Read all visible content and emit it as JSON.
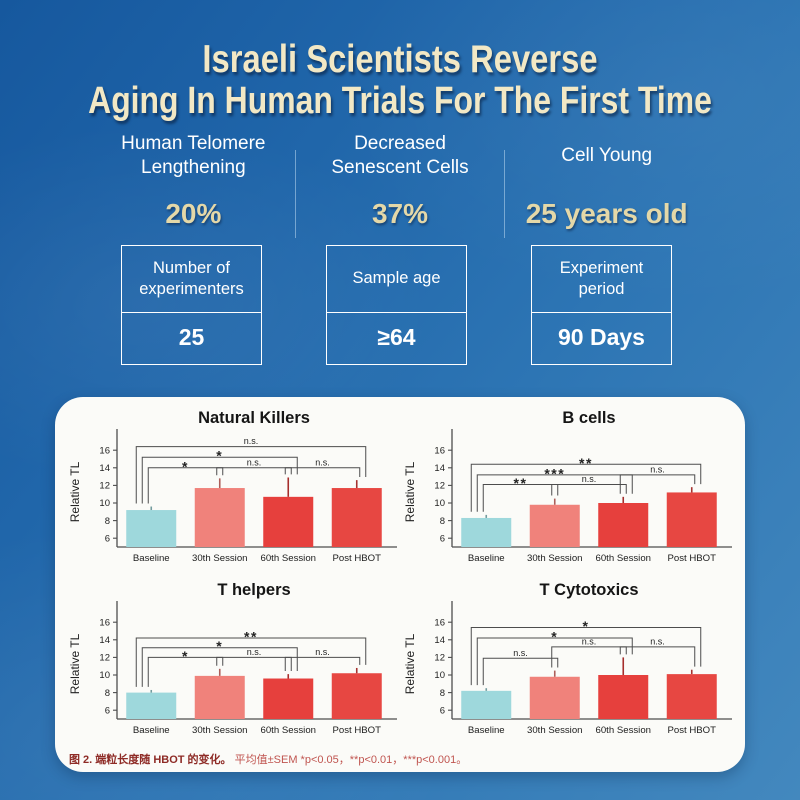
{
  "header": {
    "title_line1": "Israeli Scientists Reverse",
    "title_line2": "Aging In Human Trials For The First Time"
  },
  "stats": [
    {
      "label_lines": [
        "Human Telomere",
        "Lengthening"
      ],
      "value": "20%"
    },
    {
      "label_lines": [
        "Decreased",
        "Senescent Cells"
      ],
      "value": "37%"
    },
    {
      "label_lines": [
        "Cell Young"
      ],
      "value": "25 years old"
    }
  ],
  "info_boxes": [
    {
      "label_lines": [
        "Number of",
        "experimenters"
      ],
      "value": "25"
    },
    {
      "label_lines": [
        "Sample age"
      ],
      "value": "≥64"
    },
    {
      "label_lines": [
        "Experiment",
        "period"
      ],
      "value": "90 Days"
    }
  ],
  "caption": {
    "bold": "图 2. 端粒长度随 HBOT 的变化。",
    "normal": " 平均值±SEM *p<0.05，**p<0.01，***p<0.001。"
  },
  "theme": {
    "bg_top": "#16589E",
    "bg_bottom": "#4388BE",
    "accent_tan": "#E4D8A8",
    "panel_bg": "#FBFBF8",
    "caption_bold_color": "#8E2B26",
    "caption_normal_color": "#C05550",
    "bracket_color": "#4D4D4D"
  },
  "chart_data": [
    {
      "type": "bar",
      "title": "Natural Killers",
      "ylabel": "Relative TL",
      "categories": [
        "Baseline",
        "30th Session",
        "60th Session",
        "Post HBOT"
      ],
      "values": [
        9.2,
        11.7,
        10.7,
        11.7
      ],
      "errors": [
        0.4,
        1.1,
        2.2,
        0.9
      ],
      "bar_colors": [
        "#9ED8DC",
        "#F0827B",
        "#E6403D",
        "#E74742"
      ],
      "yticks": [
        6,
        8,
        10,
        12,
        14,
        16
      ],
      "ylim": [
        5,
        17.5
      ],
      "grid": false,
      "significance": [
        {
          "from": 0,
          "to": 1,
          "label": "*",
          "y": 14.0
        },
        {
          "from": 1,
          "to": 2,
          "label": "n.s.",
          "y": 14.0
        },
        {
          "from": 2,
          "to": 3,
          "label": "n.s.",
          "y": 14.0
        },
        {
          "from": 0,
          "to": 2,
          "label": "*",
          "y": 15.2
        },
        {
          "from": 0,
          "to": 3,
          "label": "n.s.",
          "y": 16.4
        }
      ]
    },
    {
      "type": "bar",
      "title": "B cells",
      "ylabel": "Relative TL",
      "categories": [
        "Baseline",
        "30th Session",
        "60th Session",
        "Post HBOT"
      ],
      "values": [
        8.3,
        9.8,
        10.0,
        11.2
      ],
      "errors": [
        0.35,
        0.7,
        0.7,
        0.6
      ],
      "bar_colors": [
        "#9ED8DC",
        "#F0827B",
        "#E6403D",
        "#E74742"
      ],
      "yticks": [
        6,
        8,
        10,
        12,
        14,
        16
      ],
      "ylim": [
        5,
        17.5
      ],
      "grid": false,
      "significance": [
        {
          "from": 0,
          "to": 1,
          "label": "**",
          "y": 12.1
        },
        {
          "from": 1,
          "to": 2,
          "label": "n.s.",
          "y": 12.1
        },
        {
          "from": 0,
          "to": 2,
          "label": "***",
          "y": 13.2
        },
        {
          "from": 2,
          "to": 3,
          "label": "n.s.",
          "y": 13.2
        },
        {
          "from": 0,
          "to": 3,
          "label": "**",
          "y": 14.4
        }
      ]
    },
    {
      "type": "bar",
      "title": "T helpers",
      "ylabel": "Relative TL",
      "categories": [
        "Baseline",
        "30th Session",
        "60th Session",
        "Post HBOT"
      ],
      "values": [
        8.0,
        9.9,
        9.6,
        10.2
      ],
      "errors": [
        0.3,
        0.8,
        0.5,
        0.6
      ],
      "bar_colors": [
        "#9ED8DC",
        "#F0827B",
        "#E6403D",
        "#E74742"
      ],
      "yticks": [
        6,
        8,
        10,
        12,
        14,
        16
      ],
      "ylim": [
        5,
        17.5
      ],
      "grid": false,
      "significance": [
        {
          "from": 0,
          "to": 1,
          "label": "*",
          "y": 12.0
        },
        {
          "from": 1,
          "to": 2,
          "label": "n.s.",
          "y": 12.0
        },
        {
          "from": 2,
          "to": 3,
          "label": "n.s.",
          "y": 12.0
        },
        {
          "from": 0,
          "to": 2,
          "label": "*",
          "y": 13.1
        },
        {
          "from": 0,
          "to": 3,
          "label": "**",
          "y": 14.2
        }
      ]
    },
    {
      "type": "bar",
      "title": "T Cytotoxics",
      "ylabel": "Relative TL",
      "categories": [
        "Baseline",
        "30th Session",
        "60th Session",
        "Post HBOT"
      ],
      "values": [
        8.2,
        9.8,
        10.0,
        10.1
      ],
      "errors": [
        0.3,
        0.7,
        2.0,
        0.5
      ],
      "bar_colors": [
        "#9ED8DC",
        "#F0827B",
        "#E6403D",
        "#E74742"
      ],
      "yticks": [
        6,
        8,
        10,
        12,
        14,
        16
      ],
      "ylim": [
        5,
        17.5
      ],
      "grid": false,
      "significance": [
        {
          "from": 0,
          "to": 1,
          "label": "n.s.",
          "y": 11.9
        },
        {
          "from": 1,
          "to": 2,
          "label": "n.s.",
          "y": 13.2
        },
        {
          "from": 2,
          "to": 3,
          "label": "n.s.",
          "y": 13.2
        },
        {
          "from": 0,
          "to": 2,
          "label": "*",
          "y": 14.2
        },
        {
          "from": 0,
          "to": 3,
          "label": "*",
          "y": 15.4
        }
      ]
    }
  ]
}
